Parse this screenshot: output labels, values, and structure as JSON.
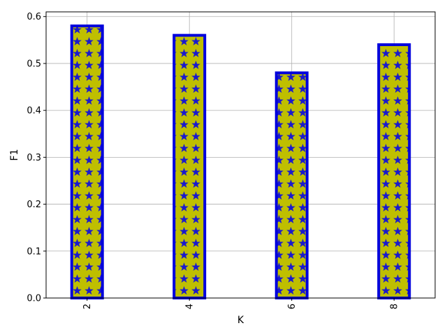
{
  "chart_data": {
    "type": "bar",
    "categories": [
      "2",
      "4",
      "6",
      "8"
    ],
    "values": [
      0.58,
      0.56,
      0.48,
      0.54
    ],
    "title": "",
    "xlabel": "K",
    "ylabel": "F1",
    "ylim": [
      0,
      0.61
    ],
    "yticks": [
      "0.0",
      "0.1",
      "0.2",
      "0.3",
      "0.4",
      "0.5",
      "0.6"
    ],
    "grid": true,
    "legend": "none",
    "colors": {
      "bar_fill": "#bfbf00",
      "bar_edge": "#0000dd",
      "hatch_star": "#1a1acc",
      "grid": "#b0b0b0",
      "axis": "#000000"
    },
    "hatch": "star"
  }
}
